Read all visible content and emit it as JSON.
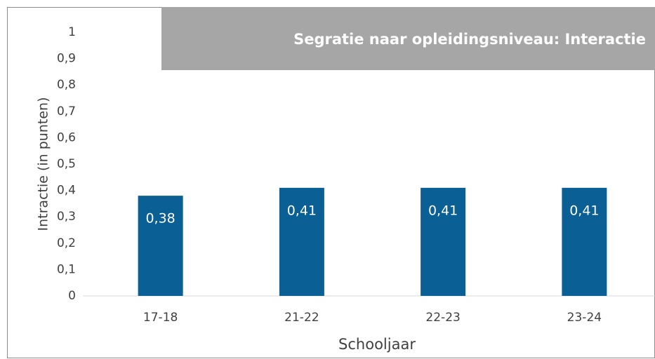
{
  "chart_data": {
    "type": "bar",
    "title": "Segratie naar opleidingsniveau: Interactie",
    "x_label": "Schooljaar",
    "y_label": "Intractie (in punten)",
    "categories": [
      "17-18",
      "21-22",
      "22-23",
      "23-24"
    ],
    "values": [
      0.38,
      0.41,
      0.41,
      0.41
    ],
    "value_labels": [
      "0,38",
      "0,41",
      "0,41",
      "0,41"
    ],
    "color": "#0a5f94",
    "ylim": [
      0,
      1
    ],
    "yticks": [
      0,
      {
        "value": 0.1,
        "label": "0,1"
      },
      {
        "value": 0.2,
        "label": "0,2"
      },
      {
        "value": 0.3,
        "label": "0,3"
      },
      {
        "value": 0.4,
        "label": "0,4"
      },
      {
        "value": 0.5,
        "label": "0,5"
      },
      {
        "value": 0.6,
        "label": "0,6"
      },
      {
        "value": 0.7,
        "label": "0,7"
      },
      {
        "value": 0.8,
        "label": "0,8"
      },
      {
        "value": 0.9,
        "label": "0,9"
      },
      1
    ],
    "grid": false
  }
}
